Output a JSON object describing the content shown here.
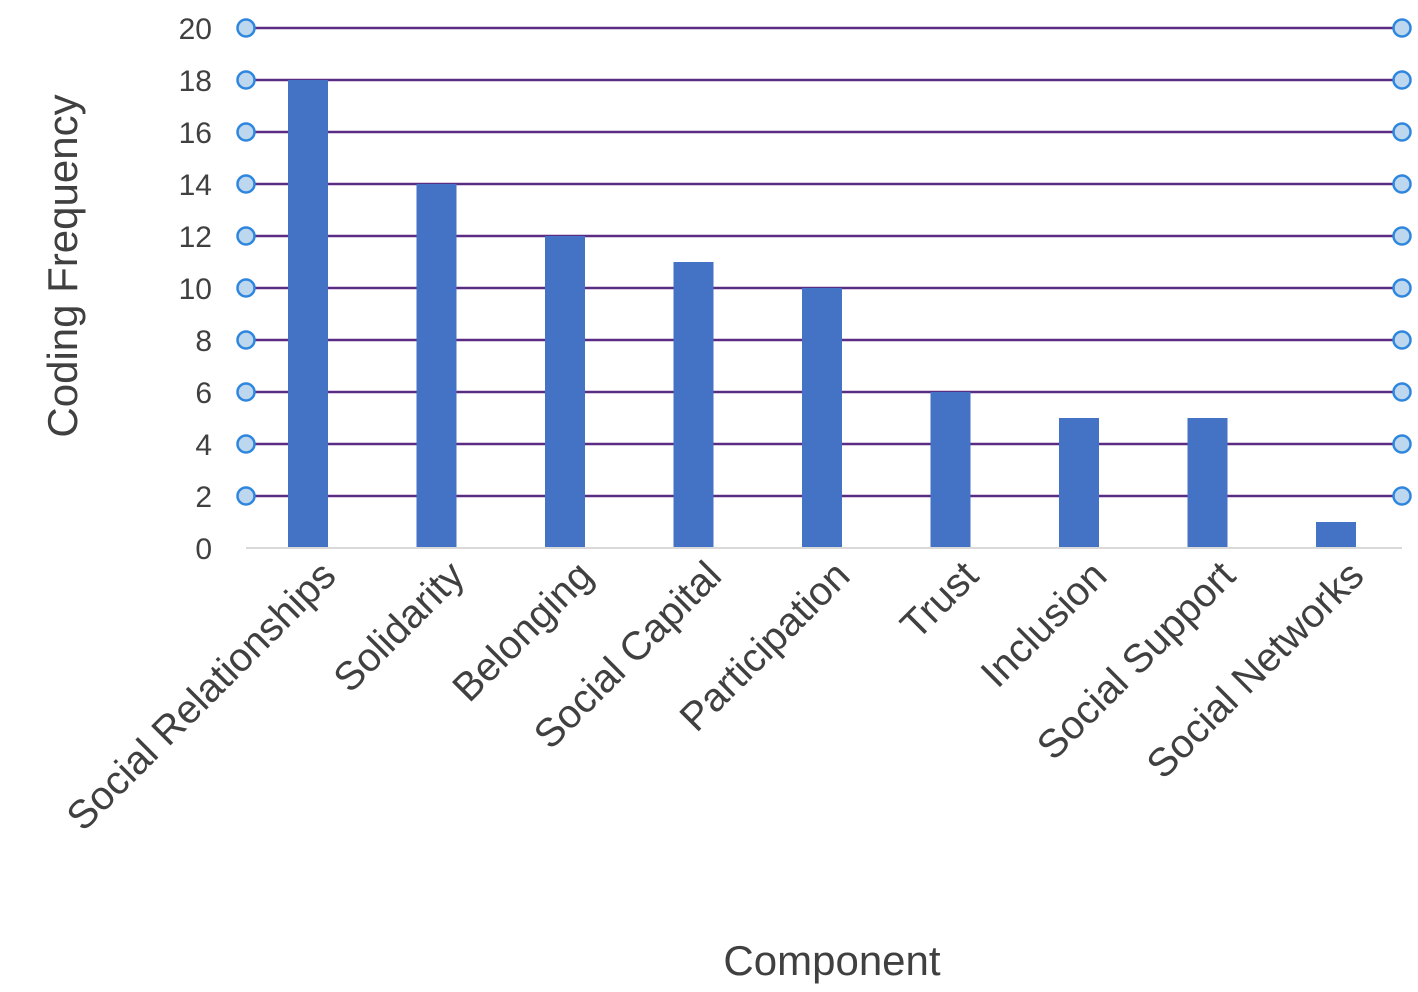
{
  "chart_data": {
    "type": "bar",
    "title": "",
    "xlabel": "Component",
    "ylabel": "Coding Frequency",
    "categories": [
      "Social Relationships",
      "Solidarity",
      "Belonging",
      "Social Capital",
      "Participation",
      "Trust",
      "Inclusion",
      "Social Support",
      "Social Networks"
    ],
    "values": [
      18,
      14,
      12,
      11,
      10,
      6,
      5,
      5,
      1
    ],
    "ylim": [
      0,
      20
    ],
    "yticks": [
      0,
      2,
      4,
      6,
      8,
      10,
      12,
      14,
      16,
      18,
      20
    ],
    "grid": true,
    "legend": "none",
    "colors": {
      "bar": "#4472C4",
      "gridline": "#5B2C83",
      "gridline_marker_fill": "#BDD7EE",
      "gridline_marker_stroke": "#2E86DE",
      "axis": "#D9D9D9",
      "text": "#404040"
    }
  }
}
